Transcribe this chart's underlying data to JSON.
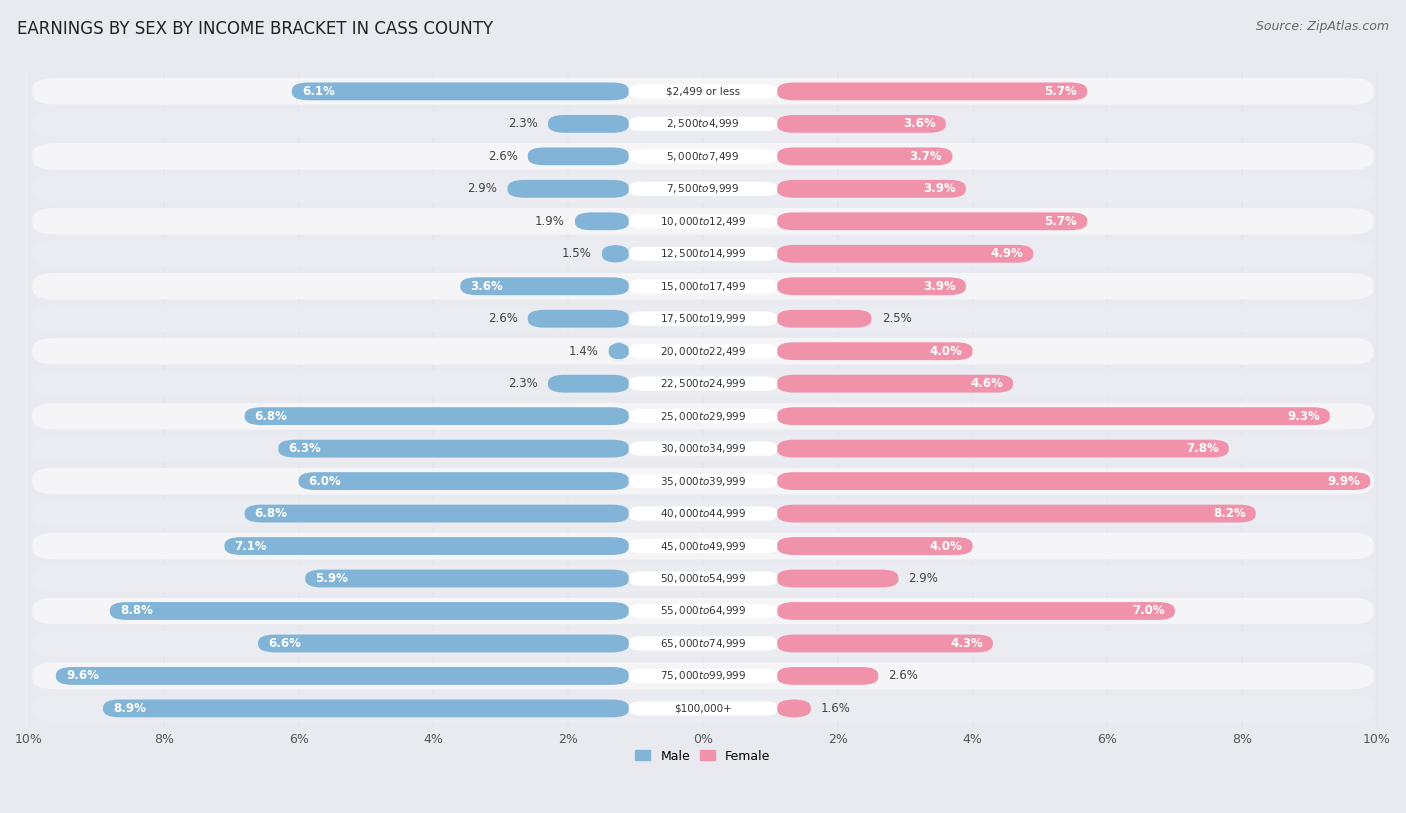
{
  "title": "EARNINGS BY SEX BY INCOME BRACKET IN CASS COUNTY",
  "source": "Source: ZipAtlas.com",
  "categories": [
    "$2,499 or less",
    "$2,500 to $4,999",
    "$5,000 to $7,499",
    "$7,500 to $9,999",
    "$10,000 to $12,499",
    "$12,500 to $14,999",
    "$15,000 to $17,499",
    "$17,500 to $19,999",
    "$20,000 to $22,499",
    "$22,500 to $24,999",
    "$25,000 to $29,999",
    "$30,000 to $34,999",
    "$35,000 to $39,999",
    "$40,000 to $44,999",
    "$45,000 to $49,999",
    "$50,000 to $54,999",
    "$55,000 to $64,999",
    "$65,000 to $74,999",
    "$75,000 to $99,999",
    "$100,000+"
  ],
  "male_values": [
    6.1,
    2.3,
    2.6,
    2.9,
    1.9,
    1.5,
    3.6,
    2.6,
    1.4,
    2.3,
    6.8,
    6.3,
    6.0,
    6.8,
    7.1,
    5.9,
    8.8,
    6.6,
    9.6,
    8.9
  ],
  "female_values": [
    5.7,
    3.6,
    3.7,
    3.9,
    5.7,
    4.9,
    3.9,
    2.5,
    4.0,
    4.6,
    9.3,
    7.8,
    9.9,
    8.2,
    4.0,
    2.9,
    7.0,
    4.3,
    2.6,
    1.6
  ],
  "male_color": "#82b4d8",
  "female_color": "#f093aa",
  "male_label": "Male",
  "female_label": "Female",
  "axis_max": 10.0,
  "bg_color": "#e8eaf0",
  "row_color_even": "#f5f5f8",
  "row_color_odd": "#eaecf2",
  "title_fontsize": 12,
  "label_fontsize": 8.5,
  "tick_fontsize": 9,
  "source_fontsize": 9,
  "male_label_threshold": 2.5,
  "female_label_threshold": 2.5
}
